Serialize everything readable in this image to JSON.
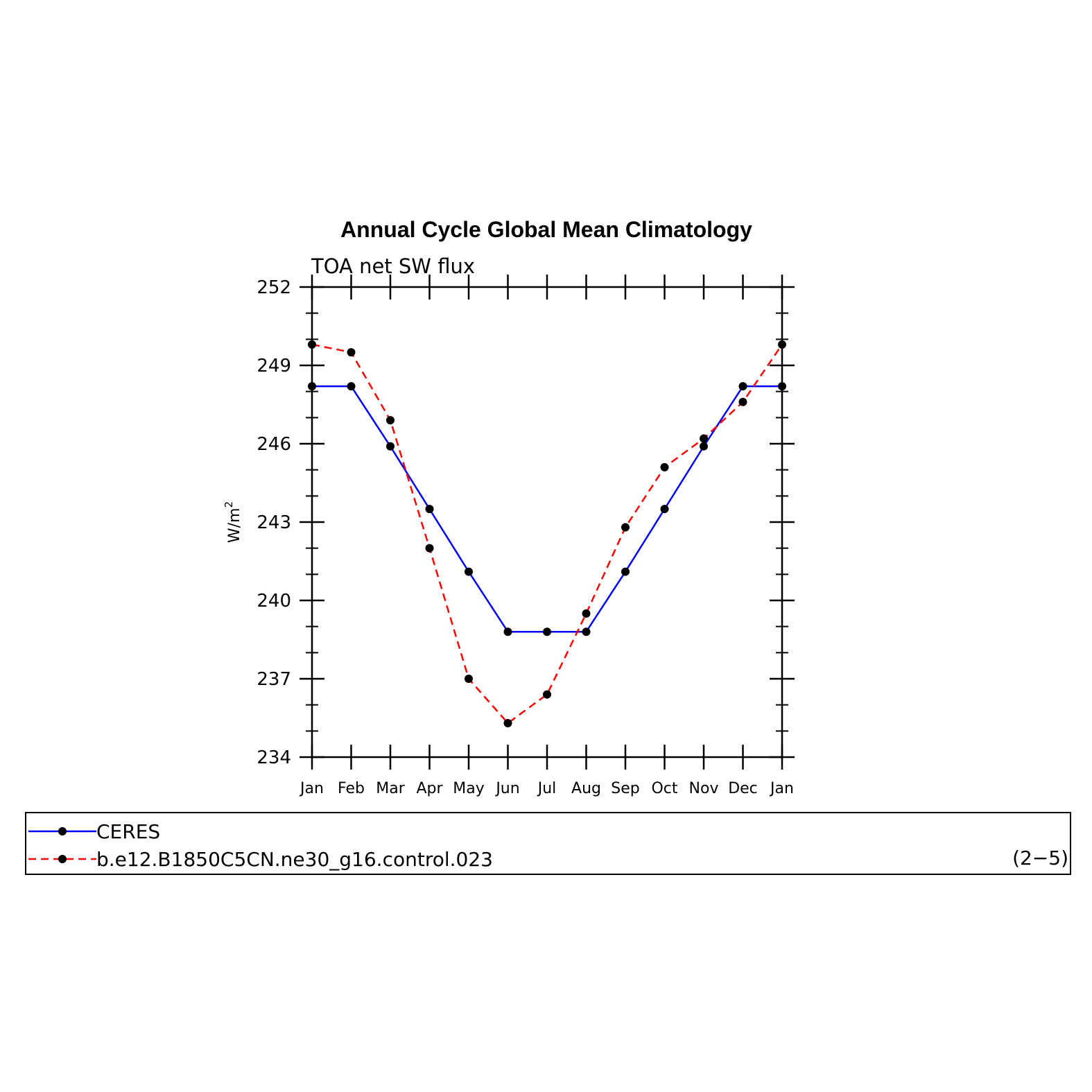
{
  "chart_data": {
    "type": "line",
    "title": "Annual Cycle Global Mean Climatology",
    "subtitle": "TOA net SW flux",
    "ylabel": "W/m",
    "ylabel_superscript": "2",
    "ylim": [
      234,
      252
    ],
    "yticks": [
      234,
      237,
      240,
      243,
      246,
      249,
      252
    ],
    "categories": [
      "Jan",
      "Feb",
      "Mar",
      "Apr",
      "May",
      "Jun",
      "Jul",
      "Aug",
      "Sep",
      "Oct",
      "Nov",
      "Dec",
      "Jan"
    ],
    "series": [
      {
        "name": "CERES",
        "color": "#0000ff",
        "dash": "solid",
        "values": [
          248.2,
          248.2,
          245.9,
          243.5,
          241.1,
          238.8,
          238.8,
          238.8,
          241.1,
          243.5,
          245.9,
          248.2,
          248.2
        ]
      },
      {
        "name": "b.e12.B1850C5CN.ne30_g16.control.023",
        "color": "#ff0000",
        "dash": "dashed",
        "values": [
          249.8,
          249.5,
          246.9,
          242.0,
          237.0,
          235.3,
          236.4,
          239.5,
          242.8,
          245.1,
          246.2,
          247.6,
          249.8
        ]
      }
    ],
    "legend_placement": "bottom",
    "grid": false
  },
  "panel_label": "(2−5)"
}
